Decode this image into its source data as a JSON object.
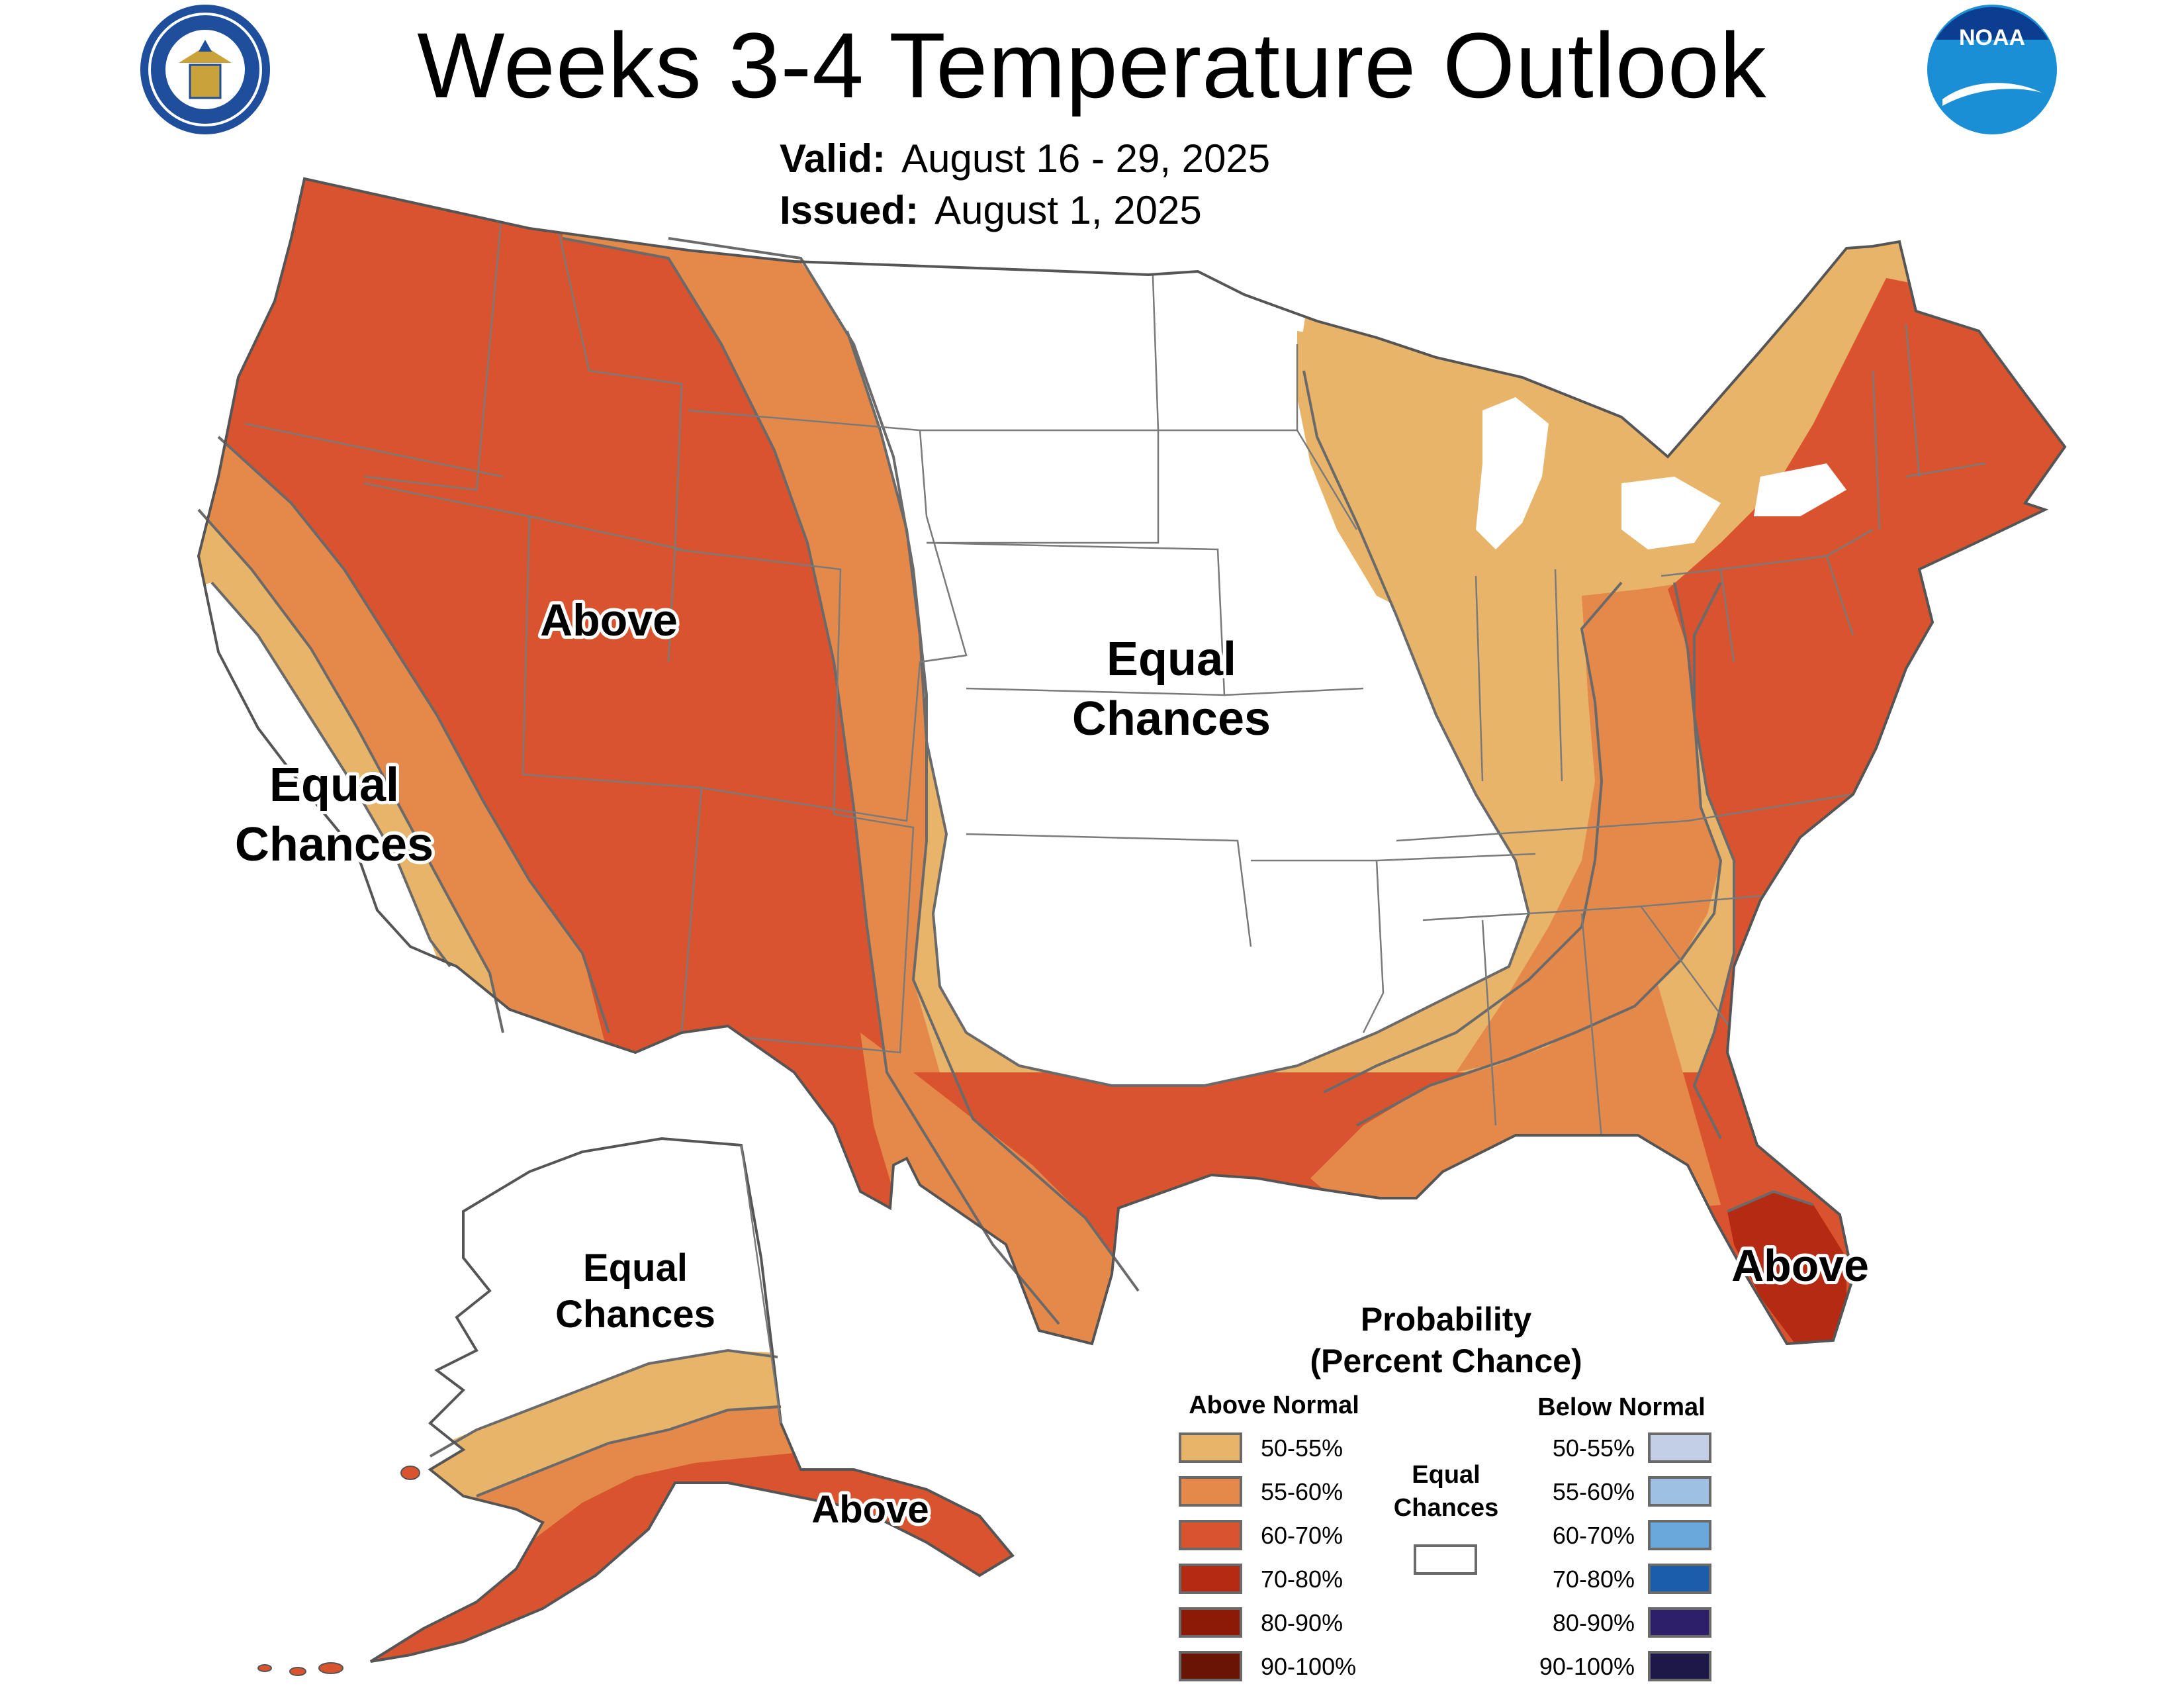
{
  "header": {
    "title": "Weeks 3-4 Temperature Outlook",
    "valid_label": "Valid:",
    "valid_value": "August 16 - 29, 2025",
    "issued_label": "Issued:",
    "issued_value": "August 1, 2025",
    "left_logo": "department-of-commerce-seal",
    "right_logo": "noaa-logo",
    "right_logo_text": "NOAA"
  },
  "map_labels": {
    "west_above": "Above",
    "central_ec_1": "Equal",
    "central_ec_2": "Chances",
    "california_ec_1": "Equal",
    "california_ec_2": "Chances",
    "florida_above": "Above",
    "alaska_ec_1": "Equal",
    "alaska_ec_2": "Chances",
    "alaska_above": "Above"
  },
  "legend": {
    "title_line1": "Probability",
    "title_line2": "(Percent Chance)",
    "above_header": "Above Normal",
    "below_header": "Below Normal",
    "ec_line1": "Equal",
    "ec_line2": "Chances",
    "above": [
      {
        "label": "50-55%",
        "color": "#e8b469"
      },
      {
        "label": "55-60%",
        "color": "#e5894a"
      },
      {
        "label": "60-70%",
        "color": "#d9542e"
      },
      {
        "label": "70-80%",
        "color": "#b52a12"
      },
      {
        "label": "80-90%",
        "color": "#8b1a07"
      },
      {
        "label": "90-100%",
        "color": "#6a1405"
      }
    ],
    "below": [
      {
        "label": "50-55%",
        "color": "#c2cfe6"
      },
      {
        "label": "55-60%",
        "color": "#9ec0e3"
      },
      {
        "label": "60-70%",
        "color": "#6aa8dc"
      },
      {
        "label": "70-80%",
        "color": "#1b5da8"
      },
      {
        "label": "80-90%",
        "color": "#2e1f6b"
      },
      {
        "label": "90-100%",
        "color": "#1d1848"
      }
    ],
    "ec_color": "#ffffff"
  }
}
